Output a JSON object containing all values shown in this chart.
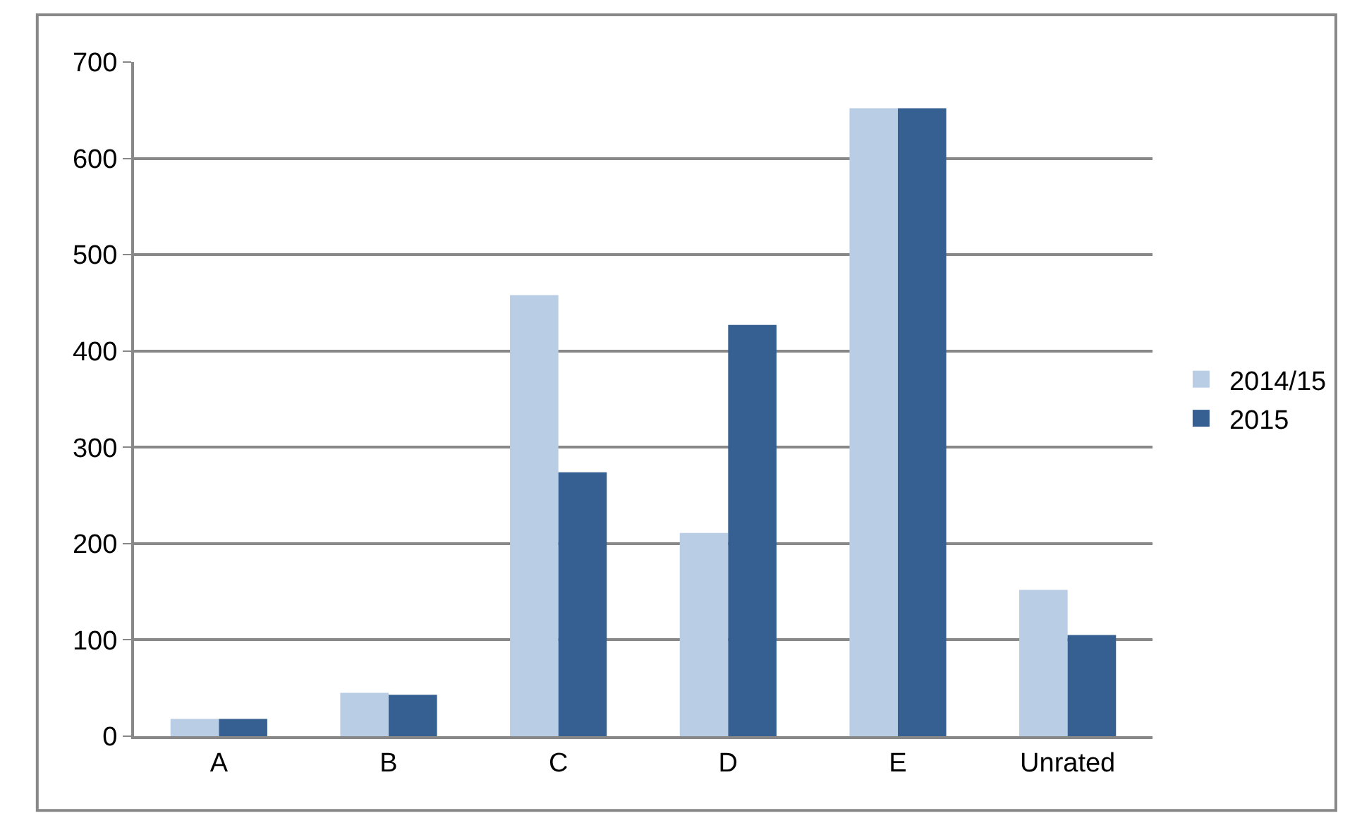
{
  "chart_data": {
    "type": "bar",
    "categories": [
      "A",
      "B",
      "C",
      "D",
      "E",
      "Unrated"
    ],
    "series": [
      {
        "name": "2014/15",
        "color": "#b9cde5",
        "values": [
          18,
          45,
          458,
          211,
          652,
          152
        ]
      },
      {
        "name": "2015",
        "color": "#366092",
        "values": [
          18,
          43,
          274,
          427,
          652,
          105
        ]
      }
    ],
    "ylim": [
      0,
      700
    ],
    "yticks": [
      0,
      100,
      200,
      300,
      400,
      500,
      600,
      700
    ],
    "grid": "y",
    "legend": "right"
  }
}
